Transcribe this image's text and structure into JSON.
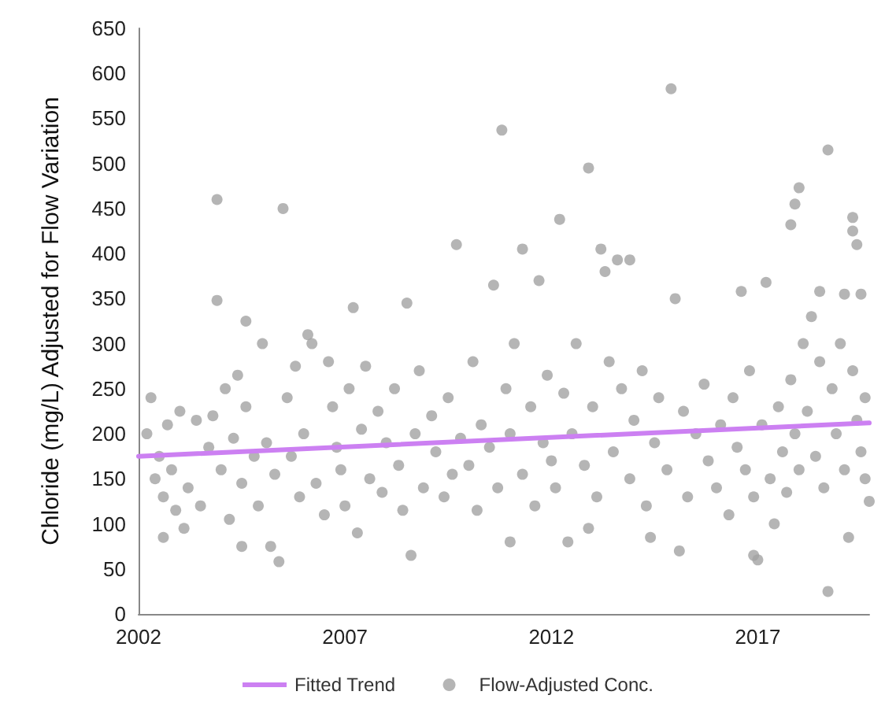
{
  "chart_data": {
    "type": "scatter",
    "ylabel": "Chloride (mg/L) Adjusted for Flow Variation",
    "xlim": [
      2002,
      2019.7
    ],
    "xticks": [
      2002,
      2007,
      2012,
      2017
    ],
    "ylim": [
      0,
      650
    ],
    "yticks": [
      0,
      50,
      100,
      150,
      200,
      250,
      300,
      350,
      400,
      450,
      500,
      550,
      600,
      650
    ],
    "grid": false,
    "legend": "bottom",
    "marker": "circle",
    "series": [
      {
        "name": "Fitted Trend",
        "type": "line",
        "color": "#cc80f2",
        "marker": "none",
        "x": [
          2002,
          2019.7
        ],
        "values": [
          175,
          212
        ]
      },
      {
        "name": "Flow-Adjusted Conc.",
        "color": "#a3a3a3",
        "x": [
          2003.9,
          2005.5,
          2010.8,
          2012.9,
          2014.9,
          2018.7,
          2018.0,
          2017.9,
          2017.8,
          2019.3,
          2019.3,
          2019.4,
          2012.2,
          2011.3,
          2013.2,
          2013.6,
          2013.3,
          2013.9,
          2009.7,
          2010.6,
          2011.7,
          2015.0,
          2003.9,
          2004.6,
          2006.1,
          2006.2,
          2007.2,
          2008.5,
          2016.6,
          2017.2,
          2018.5,
          2019.1,
          2019.5,
          2002.6,
          2003.1,
          2004.5,
          2005.2,
          2005.4,
          2007.3,
          2008.6,
          2011.0,
          2012.4,
          2012.9,
          2015.1,
          2016.9,
          2017.0,
          2018.7,
          2019.2,
          2019.7,
          2014.4,
          2002.2,
          2002.3,
          2002.4,
          2002.5,
          2002.6,
          2002.7,
          2002.8,
          2002.9,
          2003.0,
          2003.2,
          2003.4,
          2003.5,
          2003.7,
          2003.8,
          2004.0,
          2004.1,
          2004.2,
          2004.3,
          2004.4,
          2004.5,
          2004.6,
          2004.8,
          2004.9,
          2005.0,
          2005.1,
          2005.3,
          2005.6,
          2005.7,
          2005.8,
          2005.9,
          2006.0,
          2006.3,
          2006.5,
          2006.6,
          2006.7,
          2006.8,
          2006.9,
          2007.0,
          2007.1,
          2007.4,
          2007.5,
          2007.6,
          2007.8,
          2007.9,
          2008.0,
          2008.2,
          2008.3,
          2008.4,
          2008.7,
          2008.8,
          2008.9,
          2009.1,
          2009.2,
          2009.4,
          2009.5,
          2009.6,
          2009.8,
          2010.0,
          2010.1,
          2010.2,
          2010.3,
          2010.5,
          2010.7,
          2010.9,
          2011.0,
          2011.1,
          2011.3,
          2011.5,
          2011.6,
          2011.8,
          2011.9,
          2012.0,
          2012.1,
          2012.3,
          2012.5,
          2012.6,
          2012.8,
          2013.0,
          2013.1,
          2013.4,
          2013.5,
          2013.7,
          2013.9,
          2014.0,
          2014.2,
          2014.3,
          2014.5,
          2014.6,
          2014.8,
          2015.2,
          2015.3,
          2015.5,
          2015.7,
          2015.8,
          2016.0,
          2016.1,
          2016.3,
          2016.4,
          2016.5,
          2016.7,
          2016.8,
          2016.9,
          2017.1,
          2017.3,
          2017.4,
          2017.5,
          2017.6,
          2017.7,
          2017.8,
          2017.9,
          2018.0,
          2018.1,
          2018.2,
          2018.3,
          2018.4,
          2018.5,
          2018.6,
          2018.8,
          2018.9,
          2019.0,
          2019.1,
          2019.3,
          2019.4,
          2019.5,
          2019.6,
          2019.6
        ],
        "values": [
          460,
          450,
          537,
          495,
          583,
          515,
          473,
          455,
          432,
          440,
          425,
          410,
          438,
          405,
          405,
          393,
          380,
          393,
          410,
          365,
          370,
          350,
          348,
          325,
          310,
          300,
          340,
          345,
          358,
          368,
          358,
          355,
          355,
          85,
          95,
          75,
          75,
          58,
          90,
          65,
          80,
          80,
          95,
          70,
          65,
          60,
          25,
          85,
          125,
          85,
          200,
          240,
          150,
          175,
          130,
          210,
          160,
          115,
          225,
          140,
          215,
          120,
          185,
          220,
          160,
          250,
          105,
          195,
          265,
          145,
          230,
          175,
          120,
          300,
          190,
          155,
          240,
          175,
          275,
          130,
          200,
          145,
          110,
          280,
          230,
          185,
          160,
          120,
          250,
          205,
          275,
          150,
          225,
          135,
          190,
          250,
          165,
          115,
          200,
          270,
          140,
          220,
          180,
          130,
          240,
          155,
          195,
          165,
          280,
          115,
          210,
          185,
          140,
          250,
          200,
          300,
          155,
          230,
          120,
          190,
          265,
          170,
          140,
          245,
          200,
          300,
          165,
          230,
          130,
          280,
          180,
          250,
          150,
          215,
          270,
          120,
          190,
          240,
          160,
          225,
          130,
          200,
          255,
          170,
          140,
          210,
          110,
          240,
          185,
          160,
          270,
          130,
          210,
          150,
          100,
          230,
          180,
          135,
          260,
          200,
          160,
          300,
          225,
          330,
          175,
          280,
          140,
          250,
          200,
          300,
          160,
          270,
          215,
          180,
          240,
          150
        ]
      }
    ]
  }
}
